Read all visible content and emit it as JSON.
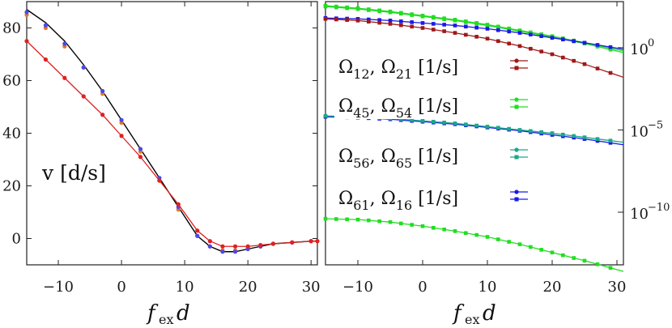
{
  "chart_data": [
    {
      "type": "line",
      "panel": "left",
      "annotation": "v [d/s]",
      "xlabel": "f_ex d",
      "xlim": [
        -15,
        31
      ],
      "ylim": [
        -10,
        90
      ],
      "xticks": [
        "−10",
        "0",
        "10",
        "20",
        "30"
      ],
      "xtick_values": [
        -10,
        0,
        10,
        20,
        30
      ],
      "yticks": [
        "80",
        "60",
        "40",
        "20",
        "0"
      ],
      "ytick_values": [
        80,
        60,
        40,
        20,
        0
      ],
      "series": [
        {
          "color": "#000000",
          "style": "line",
          "x": [
            -15,
            -12,
            -9,
            -6,
            -3,
            0,
            3,
            6,
            9,
            12,
            14,
            16,
            18,
            20,
            22,
            24,
            27,
            30,
            31
          ],
          "y": [
            87,
            82,
            75,
            66,
            56,
            45,
            34,
            23,
            12,
            1,
            -3,
            -5,
            -5,
            -4,
            -3,
            -2,
            -1.5,
            -1,
            -1
          ]
        },
        {
          "color": "#e87722",
          "style": "markers",
          "x": [
            -15,
            -12,
            -9,
            -6,
            -3,
            0,
            3,
            6,
            9,
            12,
            14,
            16,
            18,
            20,
            22,
            24,
            27,
            30
          ],
          "y": [
            85,
            80,
            73,
            65,
            55,
            44,
            33,
            22,
            11,
            1,
            -3,
            -4.5,
            -4.5,
            -3.5,
            -3,
            -2,
            -1.5,
            -1
          ]
        },
        {
          "color": "#4a4ae8",
          "style": "markers",
          "x": [
            -15,
            -12,
            -9,
            -6,
            -3,
            0,
            3,
            6,
            9,
            12,
            14,
            16,
            18,
            20,
            22,
            24,
            27,
            30
          ],
          "y": [
            86,
            81,
            74,
            65,
            56,
            45,
            34,
            23,
            12,
            1,
            -3,
            -5,
            -5,
            -4,
            -3,
            -2,
            -1.5,
            -1
          ]
        },
        {
          "color": "#e02020",
          "style": "line+markers",
          "x": [
            -15,
            -12,
            -9,
            -6,
            -3,
            0,
            3,
            6,
            9,
            12,
            14,
            16,
            18,
            20,
            22,
            24,
            27,
            30,
            31
          ],
          "y": [
            75,
            68,
            61,
            54,
            47,
            39,
            31,
            22,
            13,
            3,
            -1,
            -3,
            -3,
            -3,
            -2.5,
            -2,
            -1.5,
            -1,
            -1
          ]
        }
      ]
    },
    {
      "type": "line",
      "panel": "right",
      "xlabel": "f_ex d",
      "xlim": [
        -15,
        31
      ],
      "ylog": true,
      "ylim_log10": [
        -13.2,
        2.8
      ],
      "xticks": [
        "−10",
        "0",
        "10",
        "20",
        "30"
      ],
      "xtick_values": [
        -10,
        0,
        10,
        20,
        30
      ],
      "yticks": [
        "10",
        "10",
        "10"
      ],
      "ytick_exponents": [
        "0",
        "−5",
        "−10"
      ],
      "ytick_log_values": [
        0,
        -5,
        -10
      ],
      "legend": [
        {
          "label_a": "Ω",
          "sub_a": "12",
          "label_b": "Ω",
          "sub_b": "21",
          "unit": "[1/s]",
          "color": "#a01818"
        },
        {
          "label_a": "Ω",
          "sub_a": "45",
          "label_b": "Ω",
          "sub_b": "54",
          "unit": "[1/s]",
          "color": "#22dd22"
        },
        {
          "label_a": "Ω",
          "sub_a": "56",
          "label_b": "Ω",
          "sub_b": "65",
          "unit": "[1/s]",
          "color": "#1aa88a"
        },
        {
          "label_a": "Ω",
          "sub_a": "61",
          "label_b": "Ω",
          "sub_b": "16",
          "unit": "[1/s]",
          "color": "#1a1ae8"
        }
      ],
      "series": [
        {
          "color": "#22dd22",
          "x": [
            -15,
            -10,
            -5,
            0,
            5,
            10,
            15,
            20,
            25,
            31
          ],
          "log10y": [
            2.55,
            2.4,
            2.2,
            1.95,
            1.7,
            1.4,
            1.05,
            0.7,
            0.3,
            -0.2
          ]
        },
        {
          "color": "#22dd22",
          "x": [
            -15,
            -10,
            -5,
            0,
            5,
            10,
            15,
            20,
            25,
            31
          ],
          "log10y": [
            2.5,
            2.35,
            2.15,
            1.9,
            1.65,
            1.35,
            1.0,
            0.65,
            0.25,
            -0.3
          ]
        },
        {
          "color": "#1a1ae8",
          "x": [
            -15,
            -10,
            -5,
            0,
            5,
            10,
            15,
            20,
            25,
            31
          ],
          "log10y": [
            1.8,
            1.75,
            1.65,
            1.5,
            1.35,
            1.15,
            0.9,
            0.6,
            0.3,
            -0.1
          ]
        },
        {
          "color": "#a01818",
          "x": [
            -15,
            -10,
            -5,
            0,
            5,
            10,
            15,
            20,
            25,
            31
          ],
          "log10y": [
            1.75,
            1.65,
            1.45,
            1.2,
            0.9,
            0.55,
            0.1,
            -0.4,
            -1.0,
            -1.8
          ]
        },
        {
          "color": "#1a1ae8",
          "x": [
            -15,
            -10,
            -5,
            0,
            5,
            10,
            15,
            20,
            25,
            31
          ],
          "log10y": [
            -4.2,
            -4.25,
            -4.35,
            -4.5,
            -4.65,
            -4.85,
            -5.05,
            -5.3,
            -5.55,
            -5.9
          ]
        },
        {
          "color": "#1aa88a",
          "x": [
            -15,
            -10,
            -5,
            0,
            5,
            10,
            15,
            20,
            25,
            31
          ],
          "log10y": [
            -4.15,
            -4.2,
            -4.3,
            -4.45,
            -4.6,
            -4.8,
            -5.0,
            -5.2,
            -5.45,
            -5.75
          ]
        },
        {
          "color": "#22dd22",
          "x": [
            -15,
            -10,
            -5,
            0,
            5,
            10,
            15,
            20,
            25,
            31
          ],
          "log10y": [
            -10.4,
            -10.45,
            -10.6,
            -10.85,
            -11.15,
            -11.5,
            -11.95,
            -12.45,
            -12.95,
            -13.6
          ]
        }
      ]
    }
  ]
}
